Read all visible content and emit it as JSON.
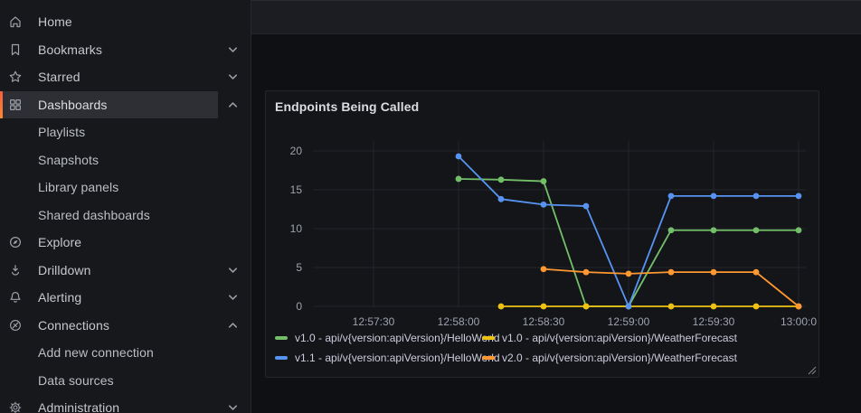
{
  "sidebar": {
    "items": [
      {
        "id": "home",
        "label": "Home",
        "icon": "home-icon"
      },
      {
        "id": "bookmarks",
        "label": "Bookmarks",
        "icon": "bookmark-icon",
        "chevron": "down"
      },
      {
        "id": "starred",
        "label": "Starred",
        "icon": "star-icon",
        "chevron": "down"
      },
      {
        "id": "dashboards",
        "label": "Dashboards",
        "icon": "apps-icon",
        "chevron": "up",
        "active": true
      },
      {
        "id": "playlists",
        "label": "Playlists",
        "sub": true
      },
      {
        "id": "snapshots",
        "label": "Snapshots",
        "sub": true
      },
      {
        "id": "library-panels",
        "label": "Library panels",
        "sub": true
      },
      {
        "id": "shared-dashboards",
        "label": "Shared dashboards",
        "sub": true
      },
      {
        "id": "explore",
        "label": "Explore",
        "icon": "compass-icon"
      },
      {
        "id": "drilldown",
        "label": "Drilldown",
        "icon": "drilldown-icon",
        "chevron": "down"
      },
      {
        "id": "alerting",
        "label": "Alerting",
        "icon": "bell-icon",
        "chevron": "down"
      },
      {
        "id": "connections",
        "label": "Connections",
        "icon": "plug-icon",
        "chevron": "up"
      },
      {
        "id": "add-new-connection",
        "label": "Add new connection",
        "sub": true
      },
      {
        "id": "data-sources",
        "label": "Data sources",
        "sub": true
      },
      {
        "id": "administration",
        "label": "Administration",
        "icon": "gear-icon",
        "chevron": "down"
      }
    ],
    "accent_color": "#ff7833"
  },
  "panel": {
    "title": "Endpoints Being Called"
  },
  "chart_data": {
    "type": "line",
    "title": "Endpoints Being Called",
    "x": [
      "12:58:00",
      "12:58:15",
      "12:58:30",
      "12:58:45",
      "12:59:00",
      "12:59:15",
      "12:59:30",
      "12:59:45",
      "13:00:00"
    ],
    "series": [
      {
        "name": "v1.0 - api/v{version:apiVersion}/HelloWorld",
        "color": "#73BF69",
        "values": [
          16.4,
          16.3,
          16.1,
          0,
          0,
          9.8,
          9.8,
          9.8,
          9.8
        ]
      },
      {
        "name": "v1.0 - api/v{version:apiVersion}/WeatherForecast",
        "color": "#EDC211",
        "values": [
          null,
          0,
          0,
          0,
          0,
          0,
          0,
          0,
          0
        ]
      },
      {
        "name": "v1.1 - api/v{version:apiVersion}/HelloWorld",
        "color": "#5794F2",
        "values": [
          19.3,
          13.8,
          13.1,
          12.9,
          0,
          14.2,
          14.2,
          14.2,
          14.2
        ]
      },
      {
        "name": "v2.0 - api/v{version:apiVersion}/WeatherForecast",
        "color": "#FF9830",
        "values": [
          null,
          null,
          4.8,
          4.4,
          4.2,
          4.4,
          4.4,
          4.4,
          0
        ]
      }
    ],
    "xticks": [
      "12:57:30",
      "12:58:00",
      "12:58:30",
      "12:59:00",
      "12:59:30",
      "13:00:0"
    ],
    "yticks": [
      0,
      5,
      10,
      15,
      20
    ],
    "ylim": [
      0,
      21.3
    ],
    "grid": true,
    "legend_position": "bottom"
  }
}
